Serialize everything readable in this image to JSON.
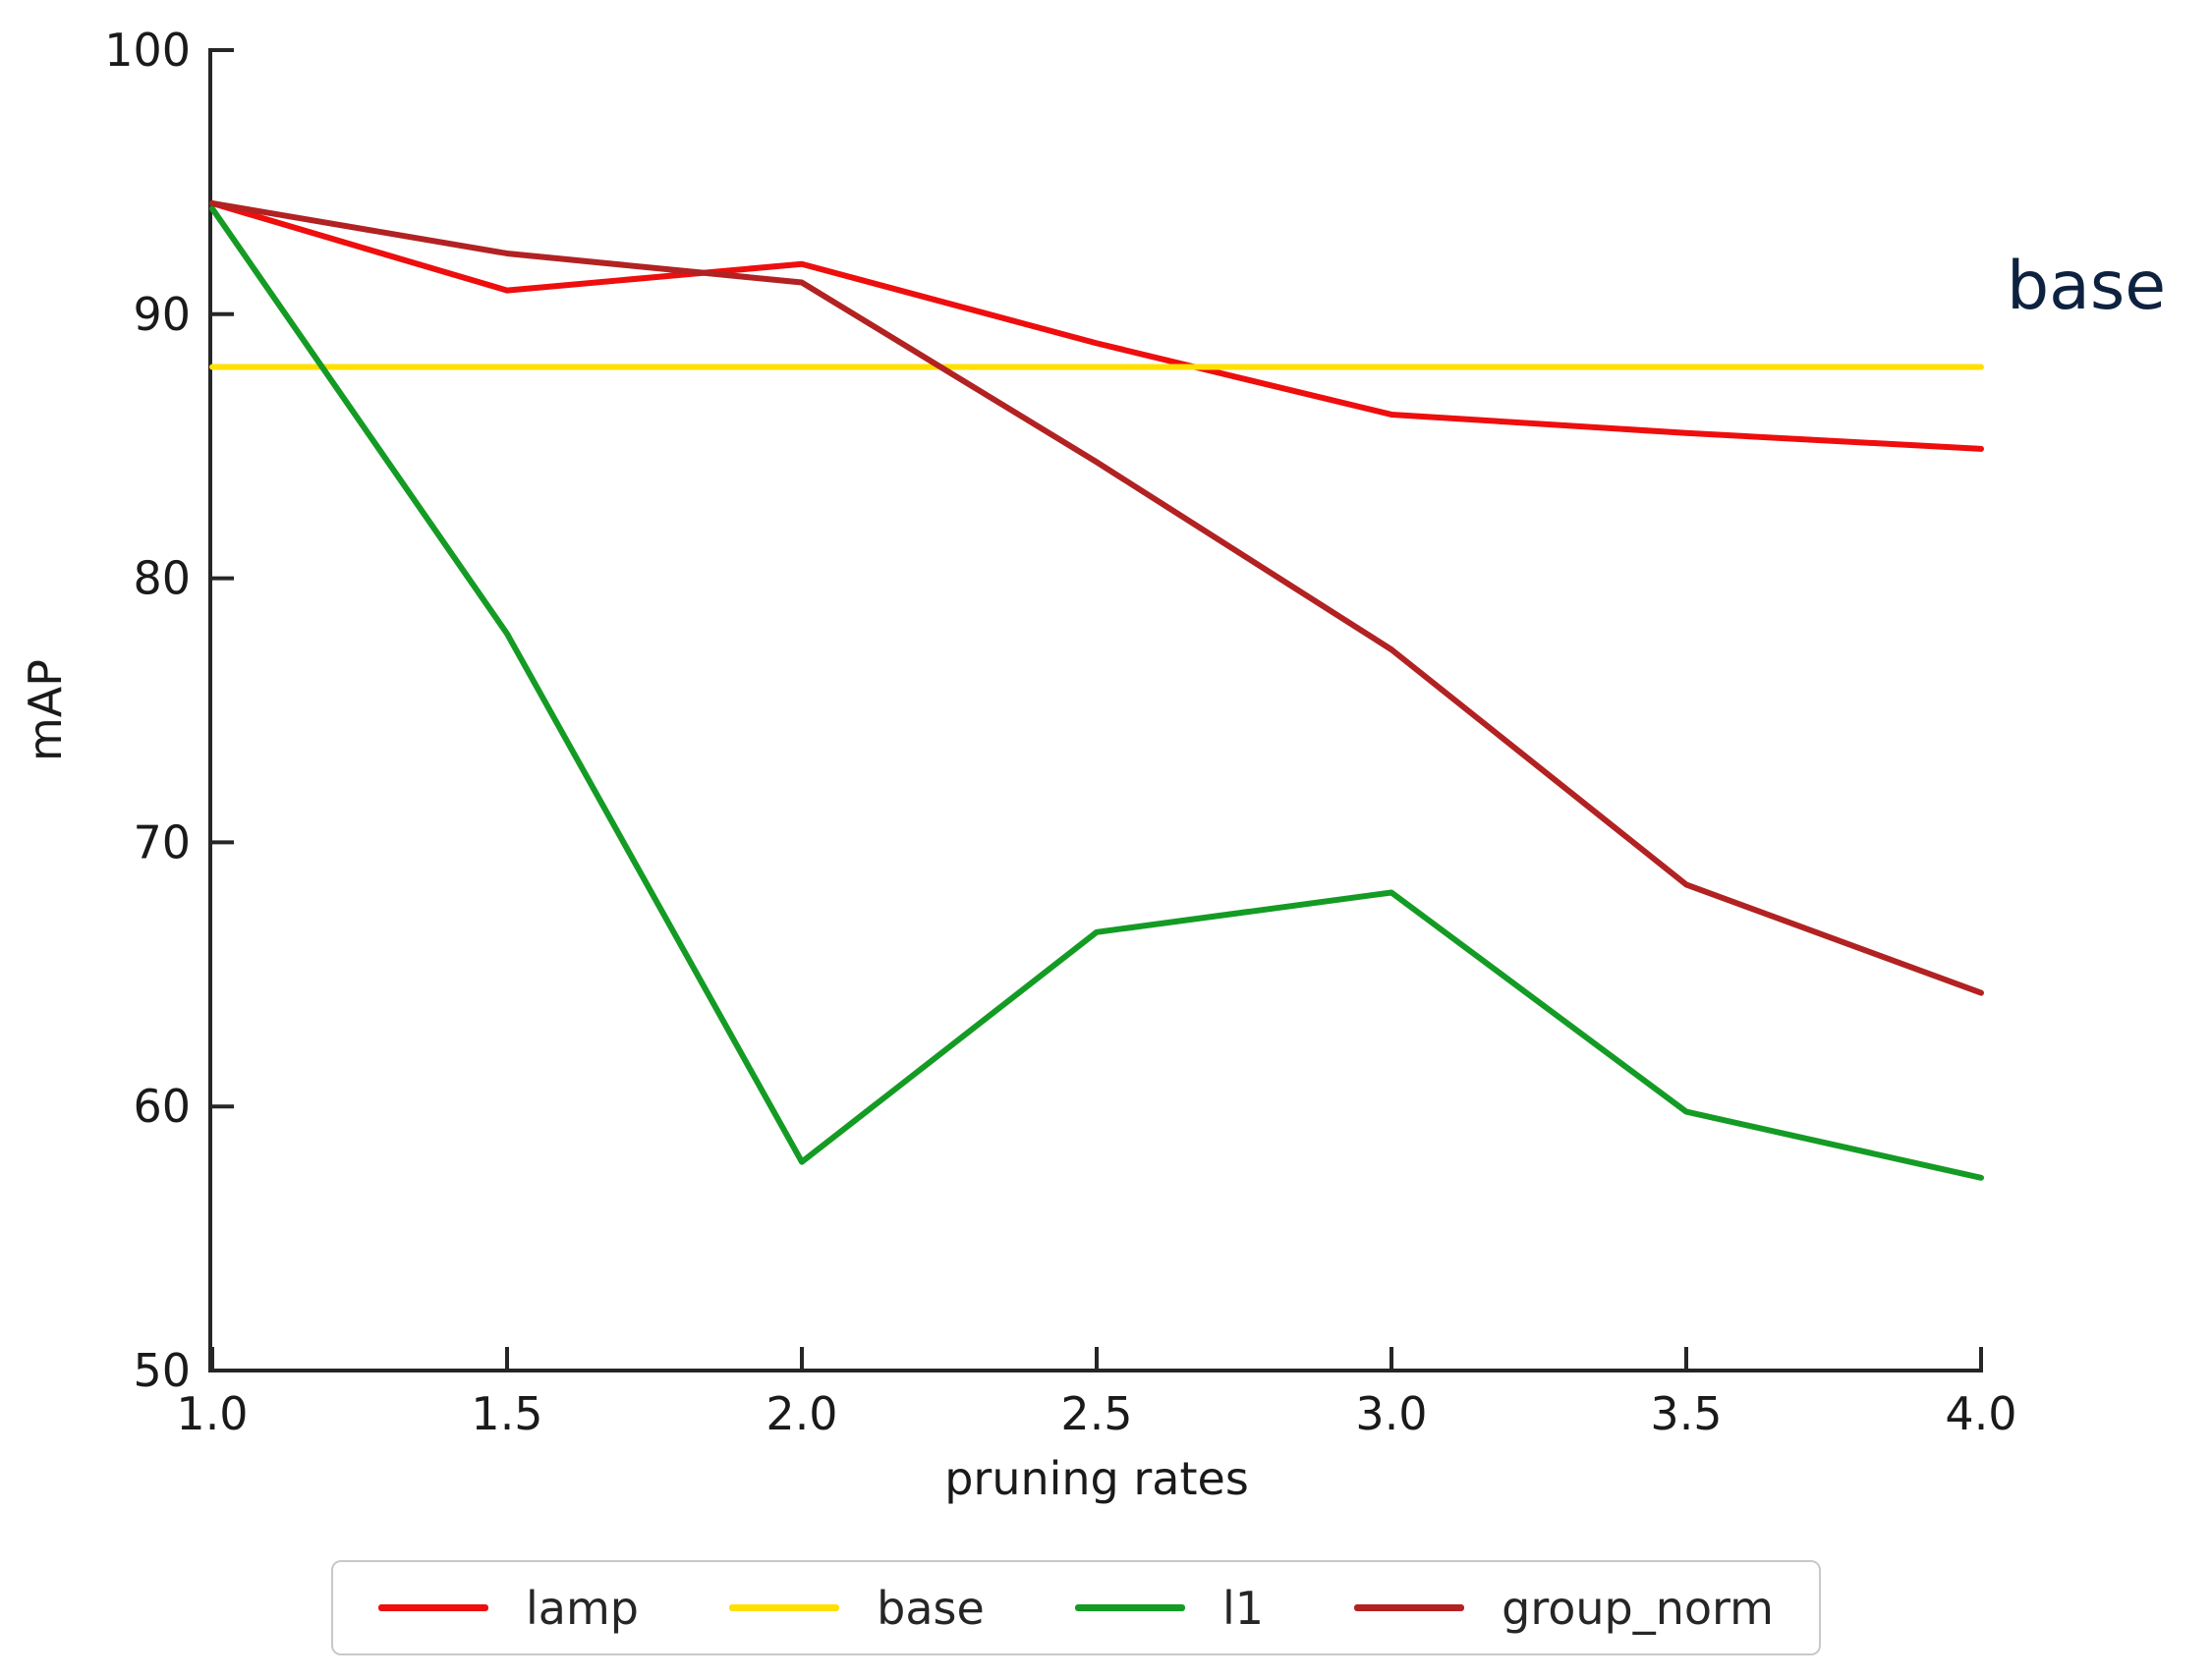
{
  "chart_data": {
    "type": "line",
    "x": [
      1.0,
      1.5,
      2.0,
      2.5,
      3.0,
      3.5,
      4.0
    ],
    "series": [
      {
        "name": "lamp",
        "color": "#ee0e0e",
        "values": [
          94.2,
          90.9,
          91.9,
          88.9,
          86.2,
          85.5,
          84.9
        ]
      },
      {
        "name": "base",
        "color": "#ffdf00",
        "values": [
          88.0,
          88.0,
          88.0,
          88.0,
          88.0,
          88.0,
          88.0
        ]
      },
      {
        "name": "l1",
        "color": "#149b24",
        "values": [
          94.0,
          77.9,
          57.9,
          66.6,
          68.1,
          59.8,
          57.3
        ]
      },
      {
        "name": "group_norm",
        "color": "#b22222",
        "values": [
          94.2,
          92.3,
          91.2,
          84.4,
          77.3,
          68.4,
          64.3
        ]
      }
    ],
    "title": "",
    "xlabel": "pruning rates",
    "ylabel": "mAP",
    "xlim": [
      1.0,
      4.0
    ],
    "ylim": [
      50,
      100
    ],
    "xticks": [
      1.0,
      1.5,
      2.0,
      2.5,
      3.0,
      3.5,
      4.0
    ],
    "yticks": [
      50,
      60,
      70,
      80,
      90,
      100
    ],
    "grid": "off",
    "legend_position": "bottom-horizontal",
    "legend_entries": [
      "lamp",
      "base",
      "l1",
      "group_norm"
    ],
    "annotation": {
      "text": "base",
      "attached_to": "base line, right side",
      "color": "#0e2240"
    }
  }
}
